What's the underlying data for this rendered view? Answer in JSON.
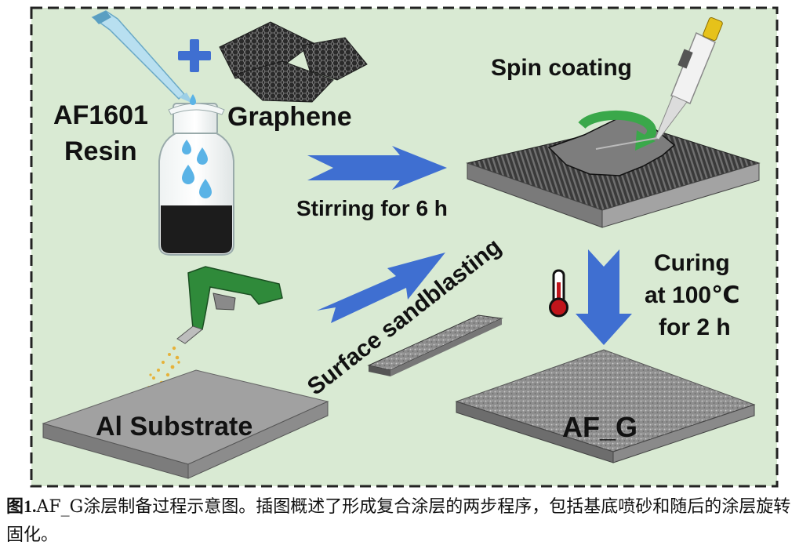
{
  "diagram": {
    "labels": {
      "resin_line1": "AF1601",
      "resin_line2": "Resin",
      "graphene": "Graphene",
      "spin_coating": "Spin coating",
      "stirring": "Stirring for 6 h",
      "curing_line1": "Curing",
      "curing_line2": "at 100℃",
      "curing_line3": "for 2 h",
      "sandblasting": "Surface sandblasting",
      "substrate": "Al Substrate",
      "product": "AF_G"
    },
    "colors": {
      "background": "#d9ead3",
      "border": "#222222",
      "arrow": "#3f6fd1",
      "liquid": "#1c1c1c",
      "droplet": "#5ab3e6",
      "spin_arrow": "#3aa84a",
      "sandblaster": "#2f8a3a",
      "thermometer_bulb": "#c0151b"
    },
    "icons": [
      "pipette-icon",
      "plus-icon",
      "graphene-flake-icon",
      "bottle-icon",
      "micropipette-icon",
      "rotation-arrow-icon",
      "sandblaster-gun-icon",
      "thermometer-icon"
    ]
  },
  "caption": {
    "label": "图1.",
    "text": "AF_G涂层制备过程示意图。插图概述了形成复合涂层的两步程序，包括基底喷砂和随后的涂层旋转固化。"
  }
}
